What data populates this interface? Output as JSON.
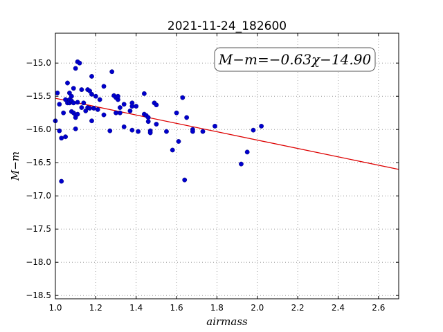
{
  "chart_data": {
    "type": "scatter",
    "title": "2021-11-24_182600",
    "xlabel": "airmass",
    "ylabel": "M−m",
    "xlim": [
      1.0,
      2.7
    ],
    "ylim": [
      -18.55,
      -14.55
    ],
    "y_inverted": true,
    "grid": true,
    "x_ticks": [
      "1.0",
      "1.2",
      "1.4",
      "1.6",
      "1.8",
      "2.0",
      "2.2",
      "2.4",
      "2.6"
    ],
    "x_tick_values": [
      1.0,
      1.2,
      1.4,
      1.6,
      1.8,
      2.0,
      2.2,
      2.4,
      2.6
    ],
    "y_ticks": [
      "−15.0",
      "−15.5",
      "−16.0",
      "−16.5",
      "−17.0",
      "−17.5",
      "−18.0",
      "−18.5"
    ],
    "y_tick_values": [
      -15.0,
      -15.5,
      -16.0,
      -16.5,
      -17.0,
      -17.5,
      -18.0,
      -18.5
    ],
    "annotation": "M−m=−0.63χ−14.90",
    "colors": {
      "points": "#0000cc",
      "fit_line": "#dd0000",
      "grid": "#888888"
    },
    "fit": {
      "slope": -0.63,
      "intercept": -14.9
    },
    "series": [
      {
        "x": [
          1.0,
          1.01,
          1.02,
          1.02,
          1.03,
          1.03,
          1.04,
          1.05,
          1.05,
          1.06,
          1.06,
          1.07,
          1.07,
          1.07,
          1.08,
          1.08,
          1.08,
          1.08,
          1.09,
          1.09,
          1.09,
          1.1,
          1.1,
          1.1,
          1.1,
          1.11,
          1.11,
          1.11,
          1.12,
          1.13,
          1.13,
          1.14,
          1.15,
          1.16,
          1.16,
          1.17,
          1.17,
          1.18,
          1.18,
          1.18,
          1.19,
          1.2,
          1.21,
          1.22,
          1.24,
          1.24,
          1.27,
          1.28,
          1.29,
          1.3,
          1.3,
          1.31,
          1.31,
          1.32,
          1.32,
          1.34,
          1.34,
          1.37,
          1.38,
          1.38,
          1.38,
          1.4,
          1.41,
          1.44,
          1.44,
          1.45,
          1.46,
          1.46,
          1.47,
          1.47,
          1.49,
          1.5,
          1.5,
          1.55,
          1.58,
          1.6,
          1.61,
          1.63,
          1.64,
          1.65,
          1.68,
          1.68,
          1.73,
          1.79,
          1.92,
          1.95,
          1.98,
          2.02
        ],
        "y": [
          -15.87,
          -15.45,
          -16.02,
          -15.62,
          -16.78,
          -16.13,
          -15.75,
          -15.55,
          -16.11,
          -15.3,
          -15.6,
          -15.55,
          -15.45,
          -15.6,
          -15.73,
          -15.5,
          -15.58,
          -15.57,
          -15.38,
          -15.75,
          -15.6,
          -15.08,
          -15.99,
          -15.78,
          -15.82,
          -15.59,
          -14.98,
          -15.77,
          -15.0,
          -15.67,
          -15.4,
          -15.6,
          -15.72,
          -15.67,
          -15.4,
          -15.68,
          -15.42,
          -15.2,
          -15.47,
          -15.87,
          -15.68,
          -15.5,
          -15.7,
          -15.55,
          -15.78,
          -15.35,
          -16.02,
          -15.13,
          -15.49,
          -15.75,
          -15.52,
          -15.55,
          -15.5,
          -15.75,
          -15.67,
          -15.62,
          -15.96,
          -15.72,
          -15.6,
          -16.01,
          -15.65,
          -15.65,
          -16.03,
          -15.77,
          -15.46,
          -15.79,
          -15.88,
          -15.82,
          -16.02,
          -16.05,
          -15.6,
          -15.92,
          -15.63,
          -16.03,
          -16.31,
          -15.75,
          -16.18,
          -15.52,
          -16.76,
          -15.82,
          -16.0,
          -16.03,
          -16.03,
          -15.95,
          -16.52,
          -16.34,
          -16.01,
          -15.95
        ]
      }
    ]
  }
}
